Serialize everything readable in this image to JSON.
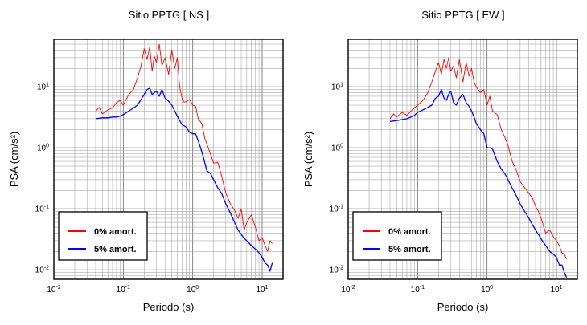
{
  "chart_data": [
    {
      "type": "line",
      "title": "Sitio PPTG [ NS ]",
      "xlabel": "Periodo (s)",
      "ylabel": "PSA (cm/s²)",
      "xscale": "log",
      "yscale": "log",
      "xlim": [
        0.01,
        20
      ],
      "ylim": [
        0.007,
        60
      ],
      "xticks": [
        {
          "v": 0.01,
          "m": "10",
          "e": "-2"
        },
        {
          "v": 0.1,
          "m": "10",
          "e": "-1"
        },
        {
          "v": 1,
          "m": "10",
          "e": "0"
        },
        {
          "v": 10,
          "m": "10",
          "e": "1"
        }
      ],
      "yticks": [
        {
          "v": 0.01,
          "m": "10",
          "e": "-2"
        },
        {
          "v": 0.1,
          "m": "10",
          "e": "-1"
        },
        {
          "v": 1,
          "m": "10",
          "e": "0"
        },
        {
          "v": 10,
          "m": "10",
          "e": "1"
        }
      ],
      "grid": true,
      "legend": "bottom-left",
      "series": [
        {
          "name": "0% amort.",
          "color": "#ff0000",
          "width": 0.9,
          "x": [
            0.04,
            0.045,
            0.05,
            0.06,
            0.07,
            0.08,
            0.09,
            0.1,
            0.12,
            0.14,
            0.16,
            0.18,
            0.2,
            0.22,
            0.24,
            0.26,
            0.28,
            0.3,
            0.33,
            0.36,
            0.4,
            0.45,
            0.5,
            0.55,
            0.6,
            0.65,
            0.7,
            0.75,
            0.8,
            0.9,
            1.0,
            1.1,
            1.2,
            1.35,
            1.5,
            1.7,
            2.0,
            2.3,
            2.6,
            3.0,
            3.5,
            4.0,
            4.5,
            5.0,
            5.5,
            6.0,
            7.0,
            8.0,
            9.0,
            10,
            11,
            12,
            13,
            14
          ],
          "y": [
            4.0,
            4.6,
            3.6,
            4.2,
            4.5,
            5.5,
            6.0,
            5.0,
            7.5,
            9.0,
            14,
            22,
            42,
            28,
            45,
            18,
            32,
            25,
            50,
            22,
            30,
            16,
            40,
            20,
            30,
            10,
            6.5,
            5.6,
            5.7,
            6.2,
            5.0,
            4.8,
            3.0,
            2.5,
            1.4,
            0.95,
            0.56,
            0.58,
            0.35,
            0.18,
            0.12,
            0.095,
            0.07,
            0.1,
            0.045,
            0.06,
            0.08,
            0.05,
            0.03,
            0.034,
            0.025,
            0.02,
            0.03,
            0.027
          ]
        },
        {
          "name": "5% amort.",
          "color": "#0000ff",
          "width": 1.3,
          "x": [
            0.04,
            0.05,
            0.06,
            0.07,
            0.08,
            0.09,
            0.1,
            0.12,
            0.14,
            0.16,
            0.18,
            0.2,
            0.22,
            0.24,
            0.26,
            0.28,
            0.3,
            0.33,
            0.36,
            0.4,
            0.45,
            0.5,
            0.55,
            0.6,
            0.65,
            0.7,
            0.8,
            0.9,
            1.0,
            1.1,
            1.2,
            1.3,
            1.4,
            1.6,
            1.8,
            2.0,
            2.3,
            2.6,
            3.0,
            3.5,
            4.0,
            4.5,
            5.0,
            5.5,
            6.0,
            7.0,
            8.0,
            9.0,
            10,
            11,
            12,
            13,
            14
          ],
          "y": [
            3.0,
            3.1,
            3.1,
            3.2,
            3.2,
            3.3,
            3.5,
            4.0,
            4.5,
            5.0,
            6.2,
            7.5,
            9.0,
            9.5,
            7.5,
            8.0,
            8.5,
            7.0,
            9.0,
            6.5,
            5.8,
            5.0,
            4.0,
            3.3,
            2.8,
            2.4,
            2.2,
            1.8,
            1.7,
            1.7,
            1.3,
            1.0,
            0.75,
            0.42,
            0.38,
            0.3,
            0.22,
            0.18,
            0.12,
            0.085,
            0.06,
            0.045,
            0.038,
            0.033,
            0.03,
            0.025,
            0.022,
            0.019,
            0.016,
            0.013,
            0.012,
            0.0095,
            0.013
          ]
        }
      ]
    },
    {
      "type": "line",
      "title": "Sitio PPTG [ EW ]",
      "xlabel": "Periodo (s)",
      "ylabel": "PSA (cm/s²)",
      "xscale": "log",
      "yscale": "log",
      "xlim": [
        0.01,
        20
      ],
      "ylim": [
        0.007,
        60
      ],
      "xticks": [
        {
          "v": 0.01,
          "m": "10",
          "e": "-2"
        },
        {
          "v": 0.1,
          "m": "10",
          "e": "-1"
        },
        {
          "v": 1,
          "m": "10",
          "e": "0"
        },
        {
          "v": 10,
          "m": "10",
          "e": "1"
        }
      ],
      "yticks": [
        {
          "v": 0.01,
          "m": "10",
          "e": "-2"
        },
        {
          "v": 0.1,
          "m": "10",
          "e": "-1"
        },
        {
          "v": 1,
          "m": "10",
          "e": "0"
        },
        {
          "v": 10,
          "m": "10",
          "e": "1"
        }
      ],
      "grid": true,
      "legend": "bottom-left",
      "series": [
        {
          "name": "0% amort.",
          "color": "#ff0000",
          "width": 0.9,
          "x": [
            0.04,
            0.045,
            0.05,
            0.06,
            0.07,
            0.08,
            0.09,
            0.1,
            0.12,
            0.14,
            0.16,
            0.18,
            0.2,
            0.22,
            0.24,
            0.26,
            0.28,
            0.3,
            0.33,
            0.36,
            0.4,
            0.45,
            0.5,
            0.55,
            0.6,
            0.65,
            0.7,
            0.8,
            0.9,
            1.0,
            1.1,
            1.2,
            1.4,
            1.6,
            1.8,
            2.0,
            2.3,
            2.6,
            3.0,
            3.5,
            4.0,
            4.5,
            5.0,
            5.5,
            6.0,
            7.0,
            8.0,
            9.0,
            10,
            11,
            12,
            13,
            14
          ],
          "y": [
            3.0,
            3.6,
            3.2,
            3.8,
            3.4,
            4.0,
            4.5,
            5.0,
            6.0,
            8.0,
            12,
            18,
            25,
            16,
            28,
            20,
            30,
            18,
            22,
            14,
            28,
            12,
            25,
            15,
            20,
            12,
            10,
            8.0,
            9.0,
            5.0,
            7.0,
            4.0,
            3.5,
            2.0,
            1.5,
            1.1,
            0.6,
            0.45,
            0.28,
            0.22,
            0.18,
            0.15,
            0.11,
            0.09,
            0.07,
            0.04,
            0.045,
            0.035,
            0.03,
            0.025,
            0.019,
            0.018,
            0.015
          ]
        },
        {
          "name": "5% amort.",
          "color": "#0000ff",
          "width": 1.3,
          "x": [
            0.04,
            0.05,
            0.06,
            0.07,
            0.08,
            0.09,
            0.1,
            0.12,
            0.14,
            0.16,
            0.18,
            0.2,
            0.22,
            0.24,
            0.26,
            0.28,
            0.3,
            0.33,
            0.36,
            0.4,
            0.45,
            0.5,
            0.55,
            0.6,
            0.65,
            0.7,
            0.8,
            0.9,
            1.0,
            1.1,
            1.2,
            1.4,
            1.6,
            1.8,
            2.0,
            2.3,
            2.6,
            3.0,
            3.5,
            4.0,
            4.5,
            5.0,
            5.5,
            6.0,
            7.0,
            8.0,
            9.0,
            10,
            11,
            12,
            13,
            14
          ],
          "y": [
            2.7,
            2.8,
            2.9,
            3.0,
            3.2,
            3.4,
            3.8,
            4.2,
            4.6,
            5.0,
            6.5,
            7.0,
            9.0,
            6.5,
            6.0,
            7.5,
            8.5,
            5.5,
            5.0,
            6.5,
            7.5,
            5.5,
            4.8,
            4.0,
            3.2,
            2.5,
            2.0,
            1.7,
            1.0,
            1.0,
            0.95,
            0.6,
            0.45,
            0.38,
            0.3,
            0.22,
            0.17,
            0.12,
            0.09,
            0.07,
            0.055,
            0.045,
            0.038,
            0.032,
            0.025,
            0.02,
            0.018,
            0.016,
            0.012,
            0.012,
            0.009,
            0.0075
          ]
        }
      ]
    }
  ]
}
